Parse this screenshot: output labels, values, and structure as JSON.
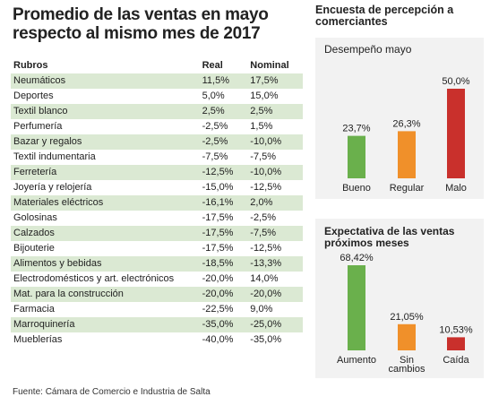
{
  "main_title": "Promedio de las ventas en mayo respecto al mismo mes de 2017",
  "table": {
    "headers": [
      "Rubros",
      "Real",
      "Nominal"
    ],
    "rows": [
      [
        "Neumáticos",
        "11,5%",
        "17,5%"
      ],
      [
        "Deportes",
        "5,0%",
        "15,0%"
      ],
      [
        "Textil blanco",
        "2,5%",
        "2,5%"
      ],
      [
        "Perfumería",
        "-2,5%",
        "1,5%"
      ],
      [
        "Bazar y regalos",
        "-2,5%",
        "-10,0%"
      ],
      [
        "Textil indumentaria",
        "-7,5%",
        "-7,5%"
      ],
      [
        "Ferretería",
        "-12,5%",
        "-10,0%"
      ],
      [
        "Joyería y relojería",
        "-15,0%",
        "-12,5%"
      ],
      [
        "Materiales eléctricos",
        "-16,1%",
        "2,0%"
      ],
      [
        "Golosinas",
        "-17,5%",
        "-2,5%"
      ],
      [
        "Calzados",
        "-17,5%",
        "-7,5%"
      ],
      [
        "Bijouterie",
        "-17,5%",
        "-12,5%"
      ],
      [
        "Alimentos y bebidas",
        "-18,5%",
        "-13,3%"
      ],
      [
        "Electrodomésticos y art. electrónicos",
        "-20,0%",
        "14,0%"
      ],
      [
        "Mat. para la construcción",
        "-20,0%",
        "-20,0%"
      ],
      [
        "Farmacia",
        "-22,5%",
        "9,0%"
      ],
      [
        "Marroquinería",
        "-35,0%",
        "-25,0%"
      ],
      [
        "Mueblerías",
        "-40,0%",
        "-35,0%"
      ]
    ]
  },
  "source": "Fuente: Cámara de Comercio e Industria de Salta",
  "side_title": "Encuesta de percepción a comerciantes",
  "colors": {
    "shade": "#dbe9d3",
    "green": "#6ab04c",
    "orange": "#f0902a",
    "red": "#c9302c",
    "panel": "#f2f2f2"
  },
  "chart_data": [
    {
      "type": "bar",
      "title": "Desempeño mayo",
      "categories": [
        "Bueno",
        "Regular",
        "Malo"
      ],
      "values": [
        23.7,
        26.3,
        50.0
      ],
      "labels": [
        "23,7%",
        "26,3%",
        "50,0%"
      ],
      "colors": [
        "#6ab04c",
        "#f0902a",
        "#c9302c"
      ],
      "ylim": [
        0,
        50
      ]
    },
    {
      "type": "bar",
      "title": "Expectativa de las ventas próximos meses",
      "categories": [
        "Aumento",
        "Sin cambios",
        "Caída"
      ],
      "values": [
        68.42,
        21.05,
        10.53
      ],
      "labels": [
        "68,42%",
        "21,05%",
        "10,53%"
      ],
      "colors": [
        "#6ab04c",
        "#f0902a",
        "#c9302c"
      ],
      "ylim": [
        0,
        68.42
      ]
    }
  ]
}
